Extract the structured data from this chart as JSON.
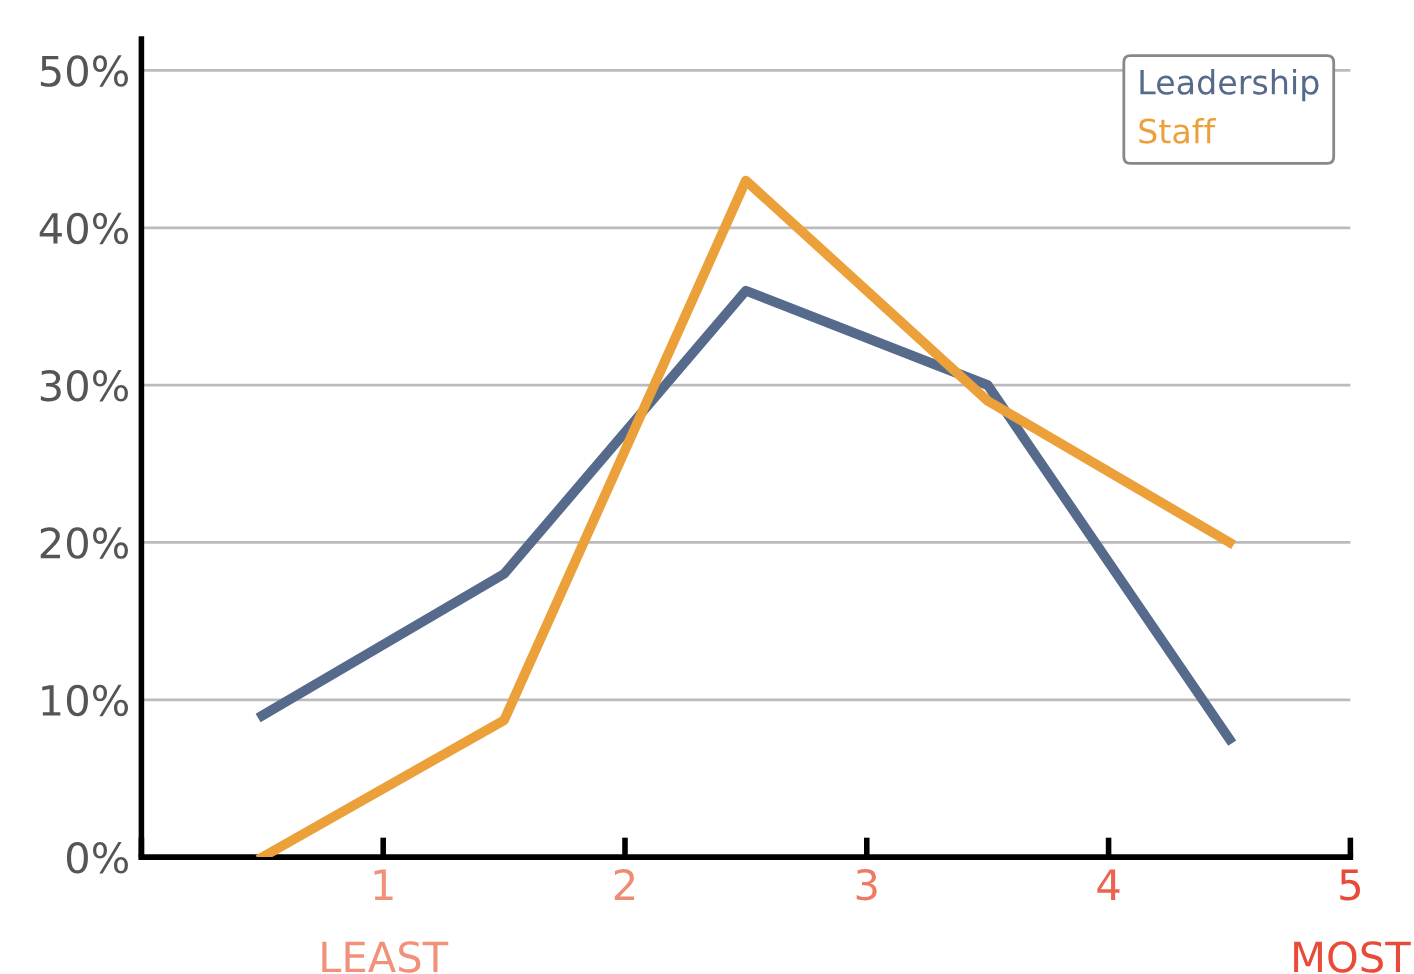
{
  "chart_data": {
    "type": "line",
    "x": [
      0.5,
      1.5,
      2.5,
      3.5,
      4.5
    ],
    "series": [
      {
        "name": "Leadership",
        "color": "#566a8c",
        "values": [
          9,
          18,
          36,
          30,
          7.5
        ]
      },
      {
        "name": "Staff",
        "color": "#eca03a",
        "values": [
          0,
          8.7,
          43,
          29,
          20
        ]
      }
    ],
    "xlim": [
      0,
      5
    ],
    "ylim": [
      0,
      52
    ],
    "xticks": [
      {
        "value": 0,
        "label": null
      },
      1,
      2,
      3,
      4,
      5
    ],
    "yticks": [
      {
        "value": 0,
        "label": "0%"
      },
      {
        "value": 10,
        "label": "10%"
      },
      {
        "value": 20,
        "label": "20%"
      },
      {
        "value": 30,
        "label": "30%"
      },
      {
        "value": 40,
        "label": "40%"
      },
      {
        "value": 50,
        "label": "50%"
      }
    ],
    "annotations": [
      "LEAST",
      "MOST"
    ],
    "grid": "y",
    "legend": "top right",
    "marker": "none",
    "line_style": "solid"
  }
}
